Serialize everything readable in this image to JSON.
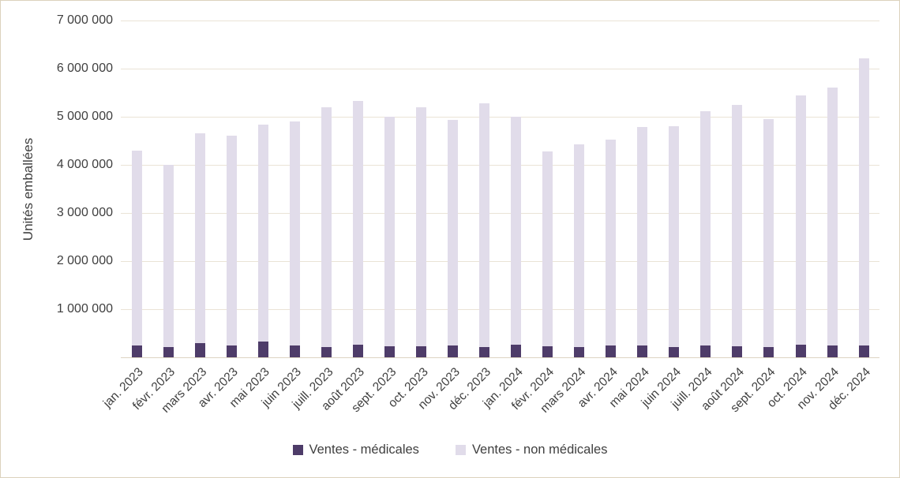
{
  "chart_data": {
    "type": "bar",
    "subtype": "stacked-column",
    "ylabel": "Unités emballées",
    "xlabel": "",
    "ylim": [
      0,
      7000000
    ],
    "grid": true,
    "legend_position": "bottom",
    "y_ticks": [
      "7 000 000",
      "6 000 000",
      "5 000 000",
      "4 000 000",
      "3 000 000",
      "2 000 000",
      "1 000 000"
    ],
    "y_tick_values": [
      7000000,
      6000000,
      5000000,
      4000000,
      3000000,
      2000000,
      1000000
    ],
    "categories": [
      "jan. 2023",
      "févr. 2023",
      "mars 2023",
      "avr. 2023",
      "mai 2023",
      "juin 2023",
      "juill. 2023",
      "août 2023",
      "sept. 2023",
      "oct. 2023",
      "nov. 2023",
      "déc. 2023",
      "jan. 2024",
      "févr. 2024",
      "mars 2024",
      "avr. 2024",
      "mai 2024",
      "juin 2024",
      "juill. 2024",
      "août 2024",
      "sept. 2024",
      "oct. 2024",
      "nov. 2024",
      "déc. 2024"
    ],
    "series": [
      {
        "name": "Ventes - médicales",
        "color": "#4e3c69",
        "values": [
          250000,
          220000,
          300000,
          240000,
          320000,
          240000,
          220000,
          260000,
          230000,
          230000,
          250000,
          220000,
          260000,
          230000,
          220000,
          250000,
          240000,
          220000,
          240000,
          230000,
          210000,
          260000,
          240000,
          240000
        ]
      },
      {
        "name": "Ventes - non médicales",
        "color": "#e1dcea",
        "values": [
          4050000,
          3780000,
          4350000,
          4360000,
          4510000,
          4660000,
          4970000,
          5070000,
          4770000,
          4960000,
          4690000,
          5060000,
          4740000,
          4050000,
          4210000,
          4280000,
          4540000,
          4580000,
          4880000,
          5010000,
          4740000,
          5190000,
          5360000,
          5970000
        ]
      }
    ]
  }
}
